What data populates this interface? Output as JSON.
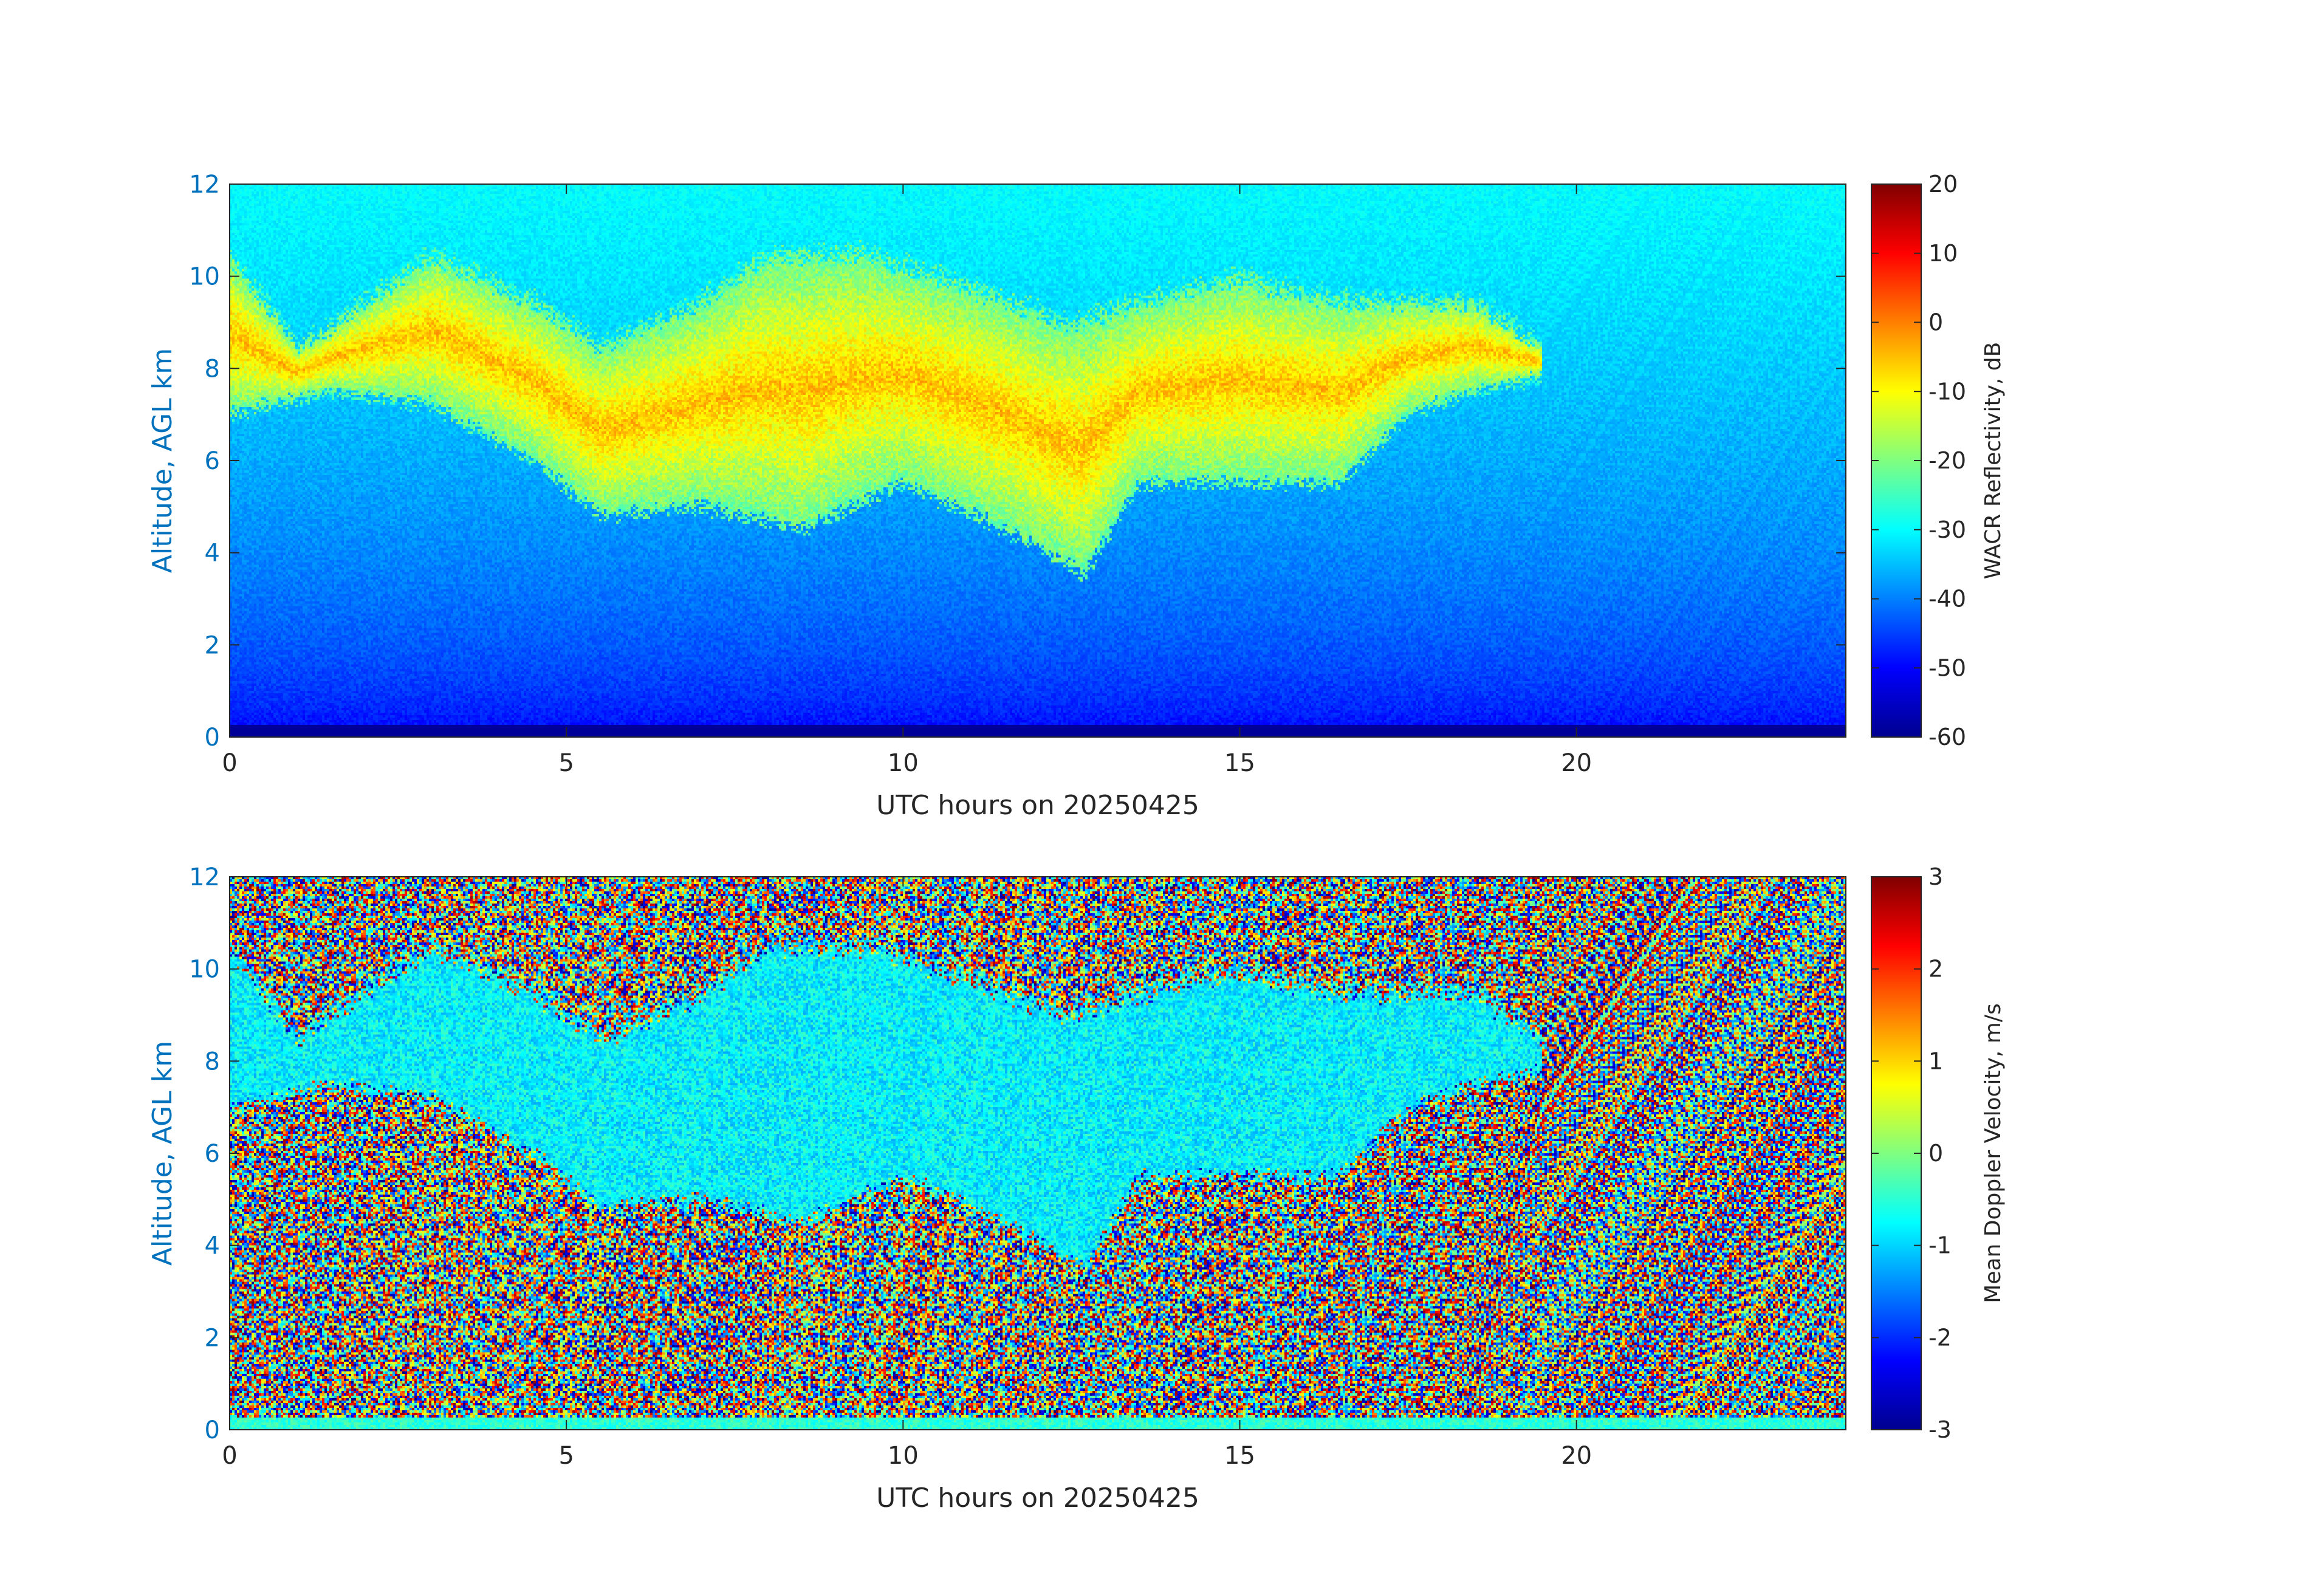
{
  "chart_data": [
    {
      "type": "heatmap",
      "x": {
        "label": "UTC hours on 20250425",
        "range": [
          0,
          24
        ],
        "ticks": [
          0,
          5,
          10,
          15,
          20
        ]
      },
      "y": {
        "label": "Altitude, AGL km",
        "range": [
          0,
          12
        ],
        "ticks": [
          0,
          2,
          4,
          6,
          8,
          10,
          12
        ]
      },
      "colorbar": {
        "label": "WACR Reflectivity, dB",
        "range": [
          -60,
          20
        ],
        "ticks": [
          -60,
          -50,
          -40,
          -30,
          -20,
          -10,
          0,
          10,
          20
        ],
        "colormap": "jet"
      },
      "field_summary": {
        "clear_air_top_value": -30,
        "clear_air_bottom_value": -52,
        "cloud_top_km": [
          [
            0.0,
            10.5
          ],
          [
            1.0,
            8.5
          ],
          [
            1.5,
            9.0
          ],
          [
            3.0,
            10.5
          ],
          [
            4.5,
            9.5
          ],
          [
            5.5,
            8.5
          ],
          [
            7.0,
            9.5
          ],
          [
            8.0,
            10.5
          ],
          [
            9.5,
            10.5
          ],
          [
            11.0,
            9.8
          ],
          [
            12.5,
            9.0
          ],
          [
            13.5,
            9.5
          ],
          [
            15.0,
            10.0
          ],
          [
            16.5,
            9.5
          ],
          [
            17.5,
            9.5
          ],
          [
            18.5,
            9.5
          ],
          [
            19.5,
            8.5
          ]
        ],
        "cloud_base_km": [
          [
            0.0,
            7.0
          ],
          [
            1.5,
            7.5
          ],
          [
            3.0,
            7.2
          ],
          [
            4.5,
            6.0
          ],
          [
            5.5,
            4.8
          ],
          [
            7.0,
            5.0
          ],
          [
            8.5,
            4.5
          ],
          [
            10.0,
            5.5
          ],
          [
            11.5,
            4.5
          ],
          [
            12.7,
            3.5
          ],
          [
            13.5,
            5.5
          ],
          [
            15.0,
            5.5
          ],
          [
            16.5,
            5.5
          ],
          [
            17.5,
            7.0
          ],
          [
            18.5,
            7.5
          ],
          [
            19.5,
            7.8
          ]
        ],
        "core_value": -5
      }
    },
    {
      "type": "heatmap",
      "x": {
        "label": "UTC hours on 20250425",
        "range": [
          0,
          24
        ],
        "ticks": [
          0,
          5,
          10,
          15,
          20
        ]
      },
      "y": {
        "label": "Altitude, AGL km",
        "range": [
          0,
          12
        ],
        "ticks": [
          0,
          2,
          4,
          6,
          8,
          10,
          12
        ]
      },
      "colorbar": {
        "label": "Mean Doppler Velocity, m/s",
        "range": [
          -3,
          3
        ],
        "ticks": [
          -3,
          -2,
          -1,
          0,
          1,
          2,
          3
        ],
        "colormap": "jet"
      },
      "field_summary": {
        "noise_range": [
          -3,
          3
        ],
        "cloud_value": -0.8
      }
    }
  ]
}
